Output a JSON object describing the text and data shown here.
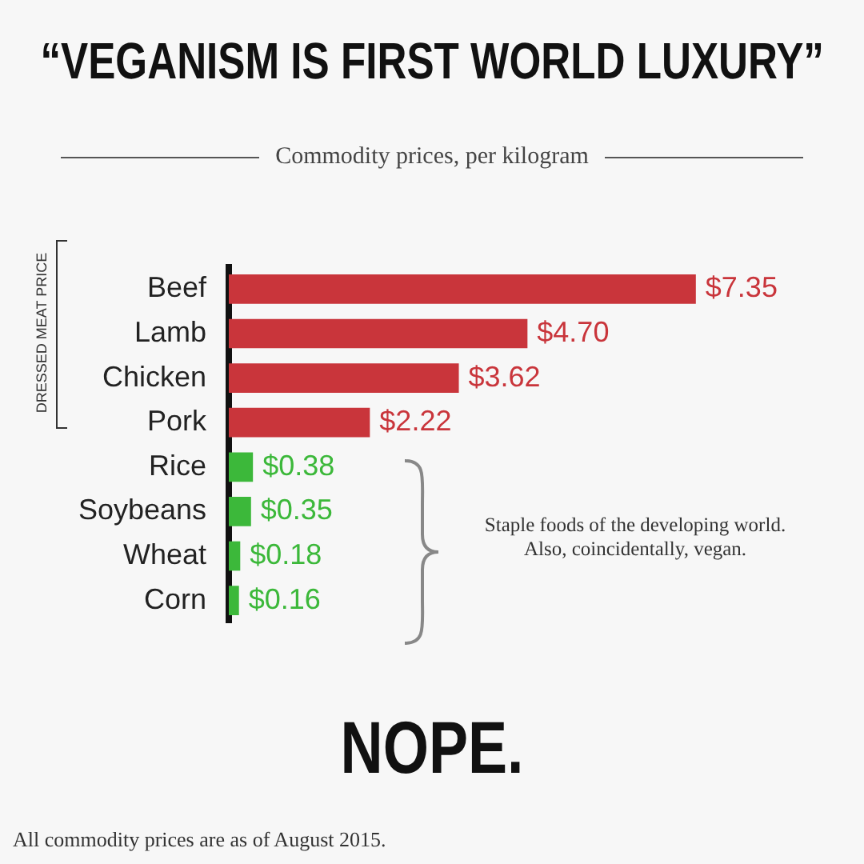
{
  "chart_data": {
    "type": "bar",
    "orientation": "horizontal",
    "title": "“VEGANISM IS FIRST WORLD LUXURY”",
    "subtitle": "Commodity prices, per kilogram",
    "categories": [
      "Beef",
      "Lamb",
      "Chicken",
      "Pork",
      "Rice",
      "Soybeans",
      "Wheat",
      "Corn"
    ],
    "values": [
      7.35,
      4.7,
      3.62,
      2.22,
      0.38,
      0.35,
      0.18,
      0.16
    ],
    "value_labels": [
      "$7.35",
      "$4.70",
      "$3.62",
      "$2.22",
      "$0.38",
      "$0.35",
      "$0.18",
      "$0.16"
    ],
    "colors": [
      "#c9353b",
      "#c9353b",
      "#c9353b",
      "#c9353b",
      "#3cb83a",
      "#3cb83a",
      "#3cb83a",
      "#3cb83a"
    ],
    "annotations": [
      "DRESSED MEAT PRICE",
      "Staple foods of the developing world. Also, coincidentally, vegan.",
      "NOPE.",
      "All commodity prices are as of August 2015."
    ],
    "legend": false
  }
}
